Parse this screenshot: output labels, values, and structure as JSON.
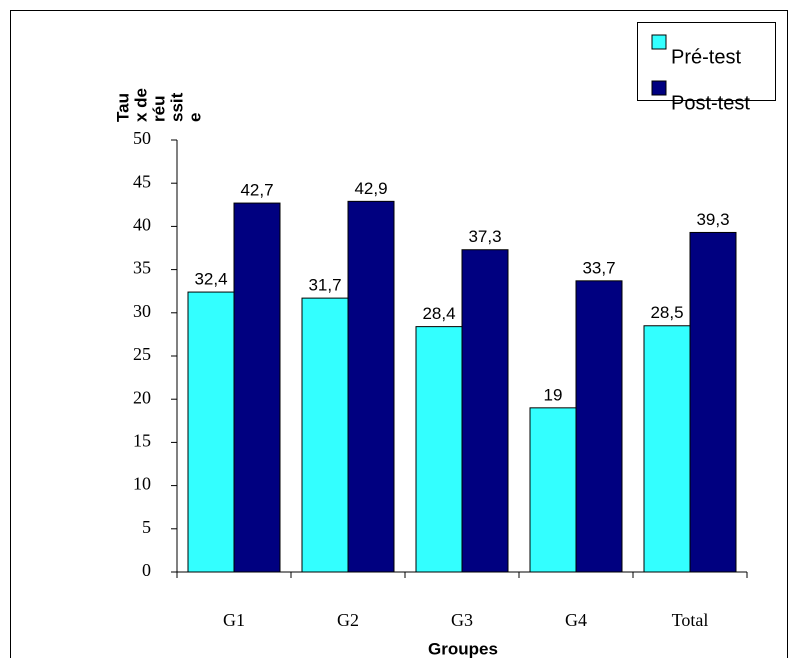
{
  "chart_data": {
    "type": "bar",
    "ylabel": [
      "Tau",
      "x de",
      "réu",
      "ssit",
      "e"
    ],
    "xlabel": "Groupes",
    "categories": [
      "G1",
      "G2",
      "G3",
      "G4",
      "Total"
    ],
    "series": [
      {
        "name": "Pré-test",
        "color": "#33ffff",
        "values": [
          32.4,
          31.7,
          28.4,
          19,
          28.5
        ],
        "value_labels": [
          "32,4",
          "31,7",
          "28,4",
          "19",
          "28,5"
        ]
      },
      {
        "name": "Post-test",
        "color": "#000080",
        "values": [
          42.7,
          42.9,
          37.3,
          33.7,
          39.3
        ],
        "value_labels": [
          "42,7",
          "42,9",
          "37,3",
          "33,7",
          "39,3"
        ]
      }
    ],
    "ylim": [
      0,
      50
    ],
    "yticks": [
      0,
      5,
      10,
      15,
      20,
      25,
      30,
      35,
      40,
      45,
      50
    ],
    "legend": "top-right"
  }
}
